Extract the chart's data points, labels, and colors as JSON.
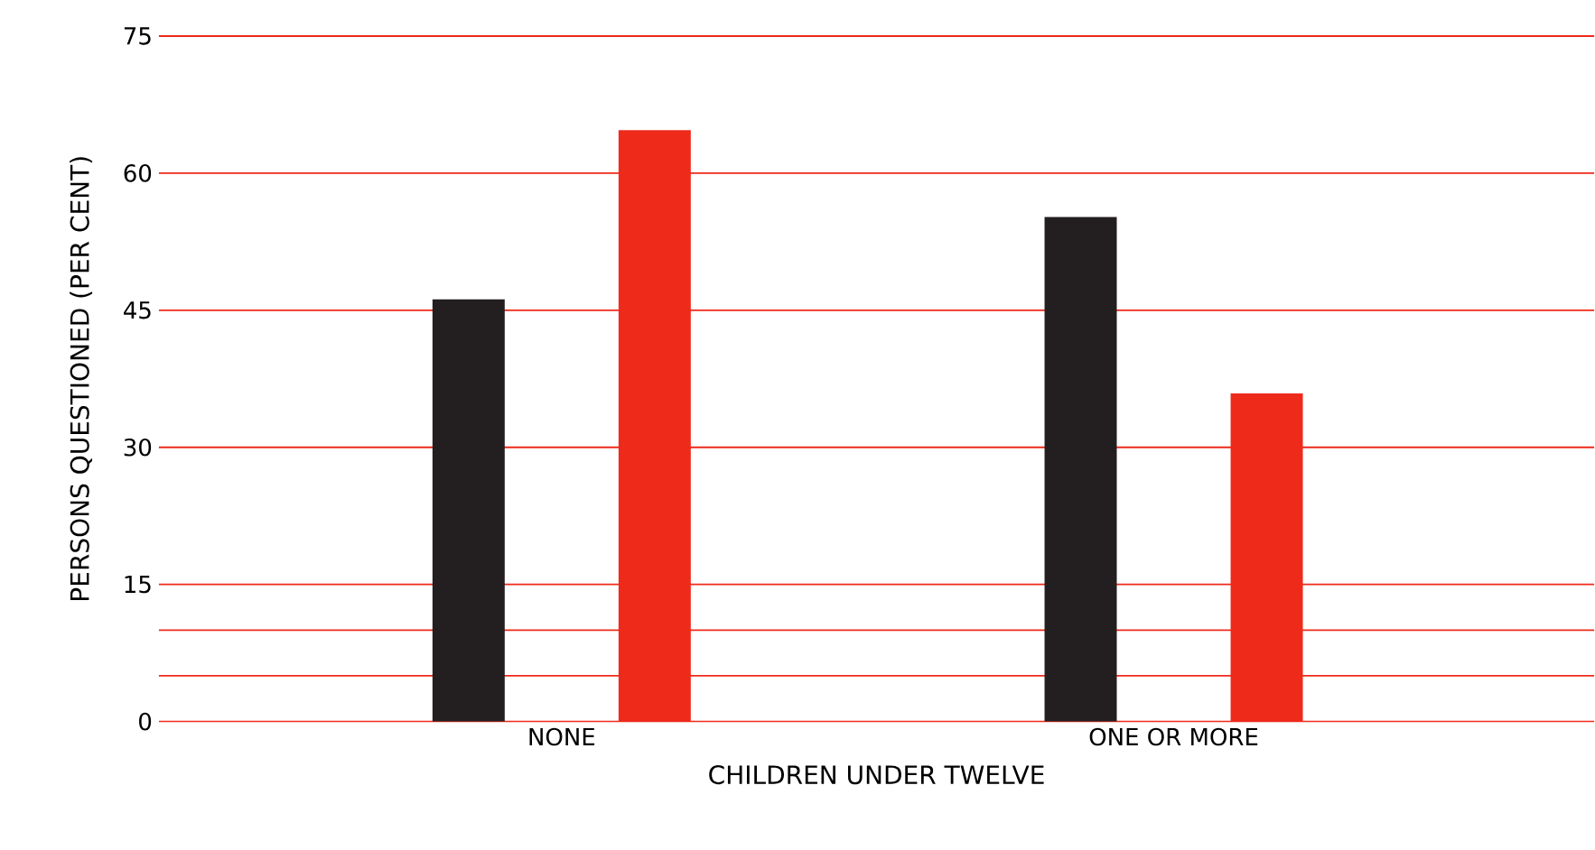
{
  "chart_data": {
    "type": "bar",
    "xlabel": "CHILDREN UNDER TWELVE",
    "ylabel": "PERSONS QUESTIONED (PER CENT)",
    "categories": [
      "NONE",
      "ONE OR MORE"
    ],
    "series": [
      {
        "color": "#231f20",
        "values": [
          46.2,
          55.2
        ]
      },
      {
        "color": "#ee2a1b",
        "values": [
          64.7,
          35.9
        ]
      }
    ],
    "ylim": [
      0,
      75
    ],
    "yticks": [
      0,
      {
        "value": 5,
        "label": null
      },
      {
        "value": 10,
        "label": null
      },
      15,
      30,
      45,
      60,
      75
    ],
    "grid": "y"
  }
}
